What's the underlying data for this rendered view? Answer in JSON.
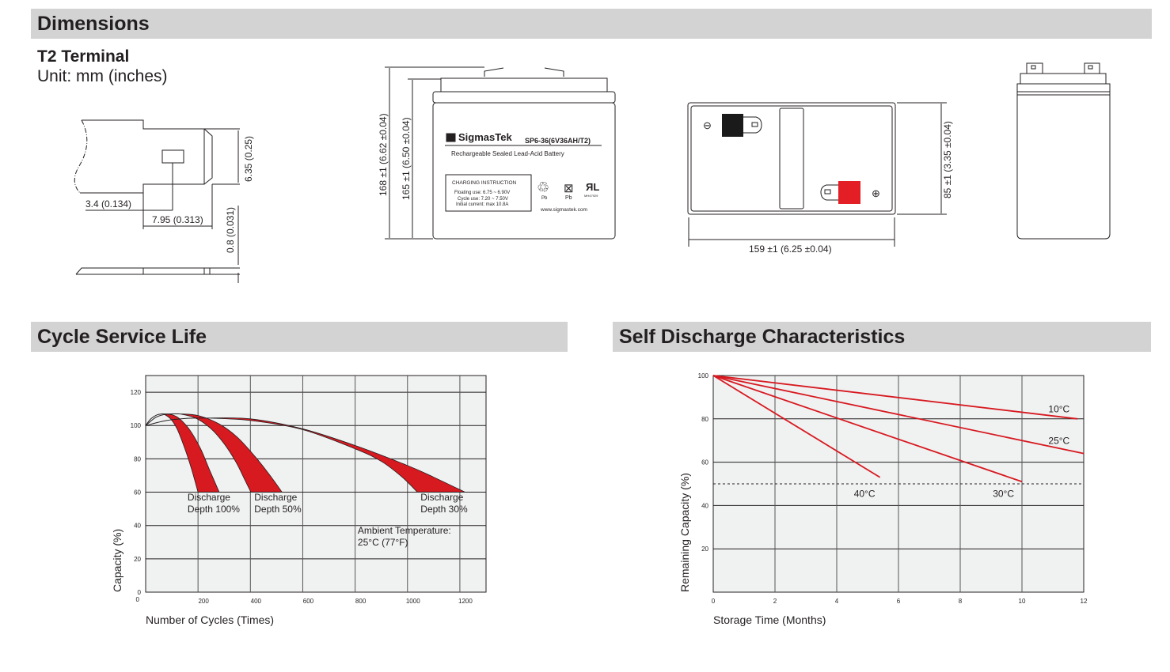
{
  "sections": {
    "dimensions": "Dimensions",
    "cycle_life": "Cycle Service Life",
    "self_discharge": "Self Discharge Characteristics"
  },
  "terminal": {
    "title": "T2 Terminal",
    "unit": "Unit: mm (inches)",
    "dim_height": "6.35 (0.25)",
    "dim_hole": "3.4 (0.134)",
    "dim_length": "7.95 (0.313)",
    "dim_thickness": "0.8 (0.031)"
  },
  "battery": {
    "height_total": "168 ±1 (6.62 ±0.04)",
    "height_case": "165 ±1 (6.50 ±0.04)",
    "width": "85 ±1 (3.35 ±0.04)",
    "length": "159 ±1 (6.25 ±0.04)",
    "brand": "SigmasTek",
    "model": "SP6-36(6V36AH/T2)",
    "description": "Rechargeable Sealed Lead-Acid Battery",
    "charging_title": "CHARGING INSTRUCTION",
    "floating": "Floating use: 6.75 ~ 6.90V",
    "cycle": "Cycle use: 7.20 ~ 7.50V",
    "initial_current": "Initial current: max 10.8A",
    "pb1": "Pb",
    "pb2": "Pb",
    "ul_code": "MH47929",
    "website": "www.sigmastek.com",
    "negative_symbol": "⊖",
    "positive_symbol": "⊕",
    "negative_color": "#1a1a1a",
    "positive_color": "#e31e24"
  },
  "chart_data": [
    {
      "type": "area",
      "xlabel": "Number of Cycles (Times)",
      "ylabel": "Capacity (%)",
      "xlim": [
        0,
        1300
      ],
      "ylim": [
        0,
        130
      ],
      "xticks": [
        200,
        400,
        600,
        800,
        1000,
        1200
      ],
      "yticks": [
        0,
        20,
        40,
        60,
        80,
        100,
        120
      ],
      "grid": true,
      "color": "#d71920",
      "series": [
        {
          "name": "Discharge Depth 100%",
          "start": [
            [
              0,
              100
            ],
            [
              20,
              104
            ],
            [
              45,
              106.5
            ],
            [
              68,
              107
            ]
          ],
          "outer": [
            [
              68,
              107
            ],
            [
              100,
              106.5
            ],
            [
              130,
              104
            ],
            [
              170,
              97
            ],
            [
              210,
              86
            ],
            [
              245,
              73
            ],
            [
              281,
              60
            ]
          ],
          "inner": [
            [
              68,
              107
            ],
            [
              95,
              104
            ],
            [
              120,
              98
            ],
            [
              150,
              86
            ],
            [
              175,
              74
            ],
            [
              200,
              60
            ]
          ]
        },
        {
          "name": "Discharge Depth 50%",
          "start": [
            [
              0,
              100
            ],
            [
              40,
              105
            ],
            [
              80,
              106.8
            ],
            [
              129,
              107
            ]
          ],
          "outer": [
            [
              129,
              107
            ],
            [
              200,
              106
            ],
            [
              280,
              101
            ],
            [
              350,
              93
            ],
            [
              420,
              81
            ],
            [
              480,
              69
            ],
            [
              521,
              60
            ]
          ],
          "inner": [
            [
              129,
              107
            ],
            [
              190,
              104.5
            ],
            [
              250,
              98
            ],
            [
              300,
              89
            ],
            [
              345,
              78
            ],
            [
              380,
              67
            ],
            [
              402,
              60
            ]
          ]
        },
        {
          "name": "Discharge Depth 30%",
          "start": [
            [
              0,
              100
            ],
            [
              80,
              103
            ],
            [
              160,
              104.3
            ],
            [
              230,
              104.5
            ]
          ],
          "outer": [
            [
              230,
              104.5
            ],
            [
              400,
              104
            ],
            [
              600,
              98
            ],
            [
              800,
              88
            ],
            [
              1000,
              76
            ],
            [
              1100,
              69
            ],
            [
              1220,
              60
            ]
          ],
          "inner": [
            [
              230,
              104.5
            ],
            [
              400,
              103
            ],
            [
              600,
              97.5
            ],
            [
              800,
              86
            ],
            [
              900,
              78.5
            ],
            [
              980,
              69
            ],
            [
              1038,
              60
            ]
          ]
        }
      ],
      "annotations": [
        {
          "lines": [
            "Discharge",
            "Depth 100%"
          ],
          "x": 160,
          "y": 55
        },
        {
          "lines": [
            "Discharge",
            "Depth 50%"
          ],
          "x": 415,
          "y": 55
        },
        {
          "lines": [
            "Discharge",
            "Depth 30%"
          ],
          "x": 1050,
          "y": 55
        },
        {
          "lines": [
            "Ambient Temperature:",
            "25°C (77°F)"
          ],
          "x": 810,
          "y": 35
        }
      ]
    },
    {
      "type": "line",
      "xlabel": "Storage Time (Months)",
      "ylabel": "Remaining Capacity (%)",
      "xlim": [
        0,
        12
      ],
      "ylim": [
        0,
        100
      ],
      "xticks": [
        0,
        2,
        4,
        6,
        8,
        10,
        12
      ],
      "yticks": [
        20,
        40,
        60,
        80,
        100
      ],
      "grid": true,
      "color": "#d71920",
      "reference_line": 50,
      "series": [
        {
          "name": "10°C",
          "points": [
            [
              0,
              100
            ],
            [
              11.8,
              80
            ]
          ],
          "label_at": [
            11.2,
            83
          ]
        },
        {
          "name": "25°C",
          "points": [
            [
              0,
              100
            ],
            [
              12,
              64
            ]
          ],
          "label_at": [
            11.2,
            68.5
          ]
        },
        {
          "name": "30°C",
          "points": [
            [
              0,
              100
            ],
            [
              10,
              51
            ]
          ],
          "label_at": [
            9.4,
            44
          ]
        },
        {
          "name": "40°C",
          "points": [
            [
              0,
              100
            ],
            [
              5.4,
              53
            ]
          ],
          "label_at": [
            4.9,
            44
          ]
        }
      ]
    }
  ]
}
